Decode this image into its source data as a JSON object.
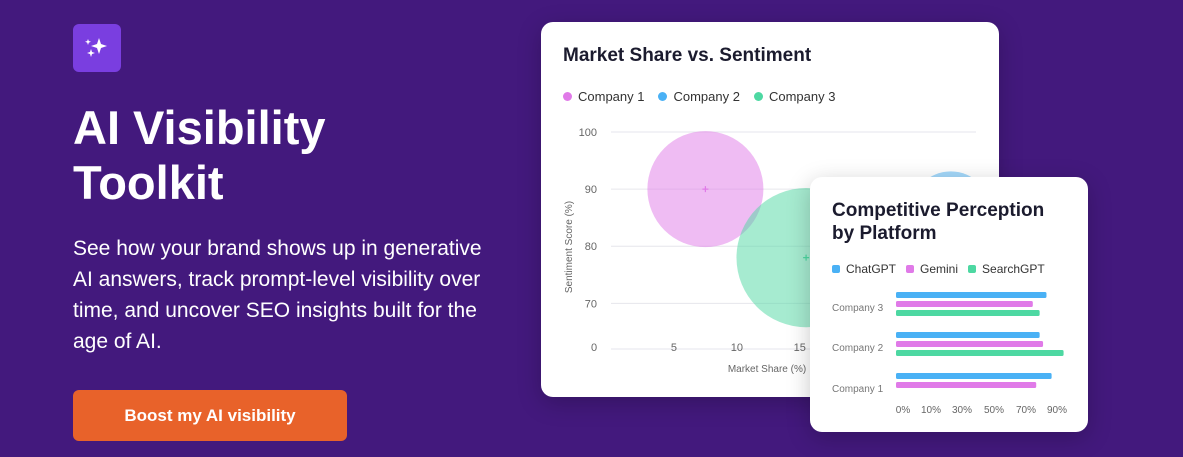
{
  "hero": {
    "icon": "sparkles-icon",
    "headline_line1": "AI Visibility",
    "headline_line2": "Toolkit",
    "description": "See how your brand shows up in generative AI answers, track prompt-level visibility over time, and uncover SEO insights built for the age of AI.",
    "cta_label": "Boost my AI visibility"
  },
  "colors": {
    "background": "#43197d",
    "icon_badge": "#7a3ee0",
    "cta": "#e8622a",
    "company1": "#e07ae8",
    "company2": "#4ab1f5",
    "company3": "#4dd8a2"
  },
  "chart_data": [
    {
      "type": "scatter",
      "title": "Market Share vs. Sentiment",
      "xlabel": "Market Share (%)",
      "ylabel": "Sentiment Score (%)",
      "x_ticks": [
        "0",
        "5",
        "10",
        "15"
      ],
      "y_ticks": [
        "100",
        "90",
        "80",
        "70"
      ],
      "xlim": [
        0,
        29
      ],
      "ylim": [
        62,
        100
      ],
      "series": [
        {
          "name": "Company 1",
          "x": 7.5,
          "y": 90,
          "radius_pct": 10
        },
        {
          "name": "Company 2",
          "x": 27,
          "y": 86,
          "radius_pct": 7
        },
        {
          "name": "Company 3",
          "x": 15.5,
          "y": 78,
          "radius_pct": 12
        }
      ]
    },
    {
      "type": "bar",
      "orientation": "horizontal",
      "title_line1": "Competitive Perception",
      "title_line2": "by Platform",
      "categories": [
        "Company 3",
        "Company 2",
        "Company 1"
      ],
      "x_ticks": [
        "0%",
        "10%",
        "30%",
        "50%",
        "70%",
        "90%"
      ],
      "series": [
        {
          "name": "ChatGPT",
          "values": [
            88,
            84,
            91
          ]
        },
        {
          "name": "Gemini",
          "values": [
            80,
            86,
            82
          ]
        },
        {
          "name": "SearchGPT",
          "values": [
            84,
            98,
            null
          ]
        }
      ]
    }
  ]
}
